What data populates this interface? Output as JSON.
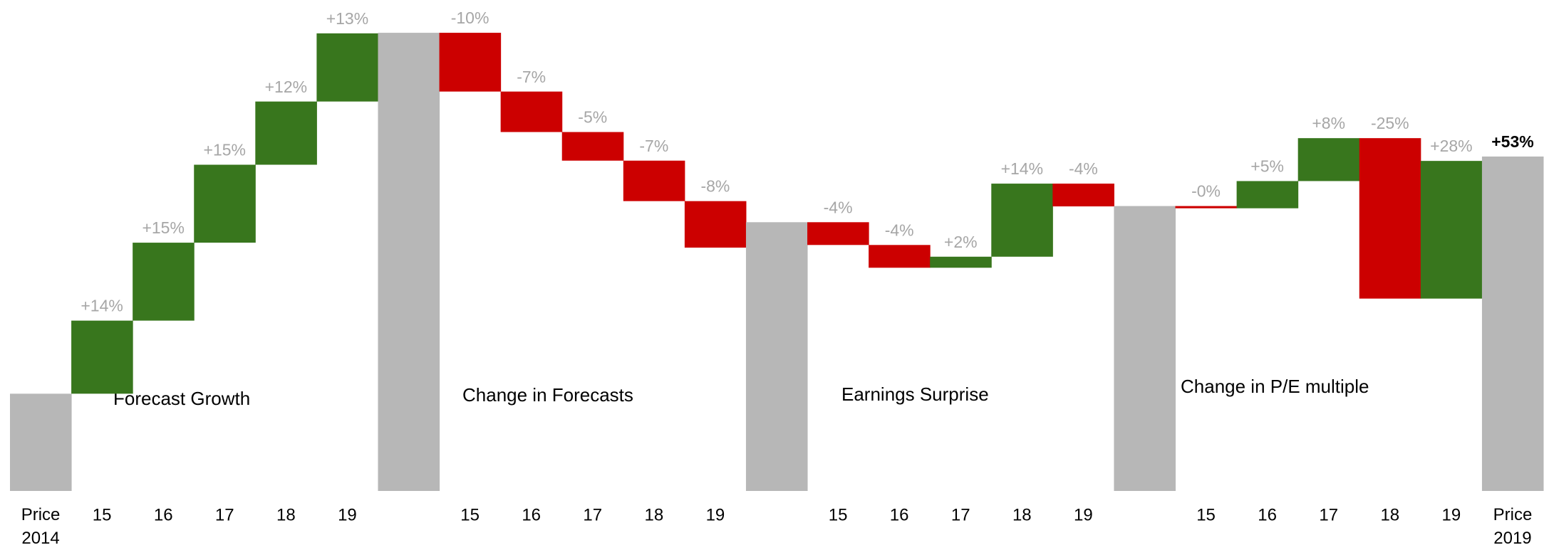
{
  "chart_data": {
    "type": "waterfall",
    "categories": [
      "Price 2014",
      "15",
      "16",
      "17",
      "18",
      "19",
      null,
      "15",
      "16",
      "17",
      "18",
      "19",
      null,
      "15",
      "16",
      "17",
      "18",
      "19",
      null,
      "15",
      "16",
      "17",
      "18",
      "19",
      "Price 2019"
    ],
    "measure": [
      "total",
      "delta",
      "delta",
      "delta",
      "delta",
      "delta",
      "total",
      "delta",
      "delta",
      "delta",
      "delta",
      "delta",
      "total",
      "delta",
      "delta",
      "delta",
      "delta",
      "delta",
      "total",
      "delta",
      "delta",
      "delta",
      "delta",
      "delta",
      "total"
    ],
    "values": [
      0,
      14,
      15,
      15,
      12,
      13,
      91,
      -10,
      -7,
      -5,
      -7,
      -8,
      36,
      -4,
      -4,
      2,
      14,
      -4,
      40,
      -0.4,
      5,
      8,
      -25,
      28,
      53
    ],
    "value_labels": [
      null,
      "+14%",
      "+15%",
      "+15%",
      "+12%",
      "+13%",
      null,
      "-10%",
      "-7%",
      "-5%",
      "-7%",
      "-8%",
      null,
      "-4%",
      "-4%",
      "+2%",
      "+14%",
      "-4%",
      null,
      "-0%",
      "+5%",
      "+8%",
      "-25%",
      "+28%",
      "+53%"
    ],
    "annotations": [
      "Forecast Growth",
      "Change in Forecasts",
      "Earnings Surprise",
      "Change in P/E multiple"
    ],
    "colors": {
      "up": "#38761d",
      "down": "#cc0000",
      "total": "#b7b7b7"
    },
    "ylim": [
      -16,
      100
    ],
    "log_scale": true
  }
}
